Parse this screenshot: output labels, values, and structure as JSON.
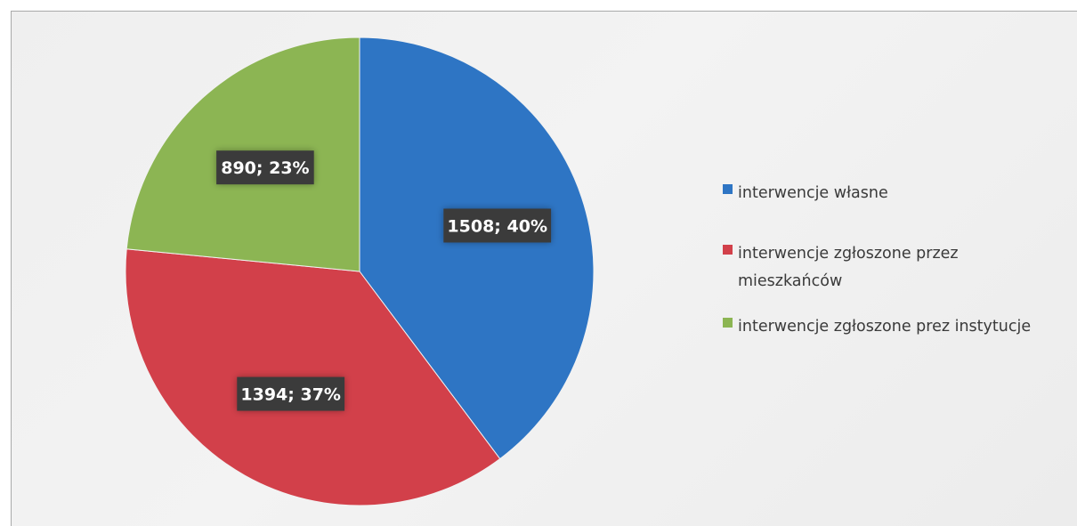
{
  "chart_data": {
    "type": "pie",
    "categories": [
      "interwencje własne",
      "interwencje zgłoszone przez mieszkańców",
      "interwencje zgłoszone prez instytucje"
    ],
    "values": [
      1508,
      1394,
      890
    ],
    "percents": [
      40,
      37,
      23
    ],
    "data_labels": [
      "1508; 40%",
      "1394; 37%",
      "890; 23%"
    ],
    "colors": [
      "#2e75c4",
      "#d2404a",
      "#8cb553"
    ],
    "legend": {
      "position": "right",
      "entries": [
        [
          "interwencje własne"
        ],
        [
          "interwencje zgłoszone przez",
          "mieszkańców"
        ],
        [
          "interwencje zgłoszone prez instytucje"
        ]
      ]
    },
    "start_angle_deg": 0,
    "direction": "clockwise"
  }
}
